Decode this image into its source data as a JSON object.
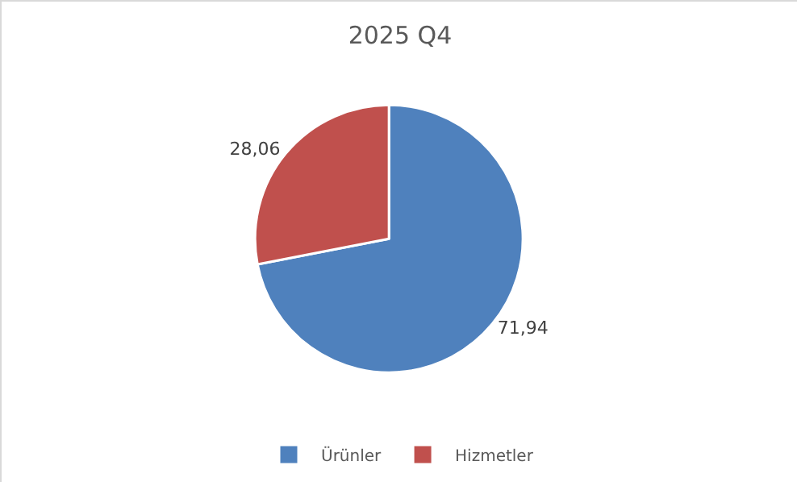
{
  "chart_data": {
    "type": "pie",
    "title": "2025 Q4",
    "categories": [
      "Ürünler",
      "Hizmetler"
    ],
    "values": [
      71.94,
      28.06
    ],
    "value_labels": [
      "71,94",
      "28,06"
    ],
    "colors": [
      "#4f81bd",
      "#c0504d"
    ],
    "legend": "bottom"
  }
}
